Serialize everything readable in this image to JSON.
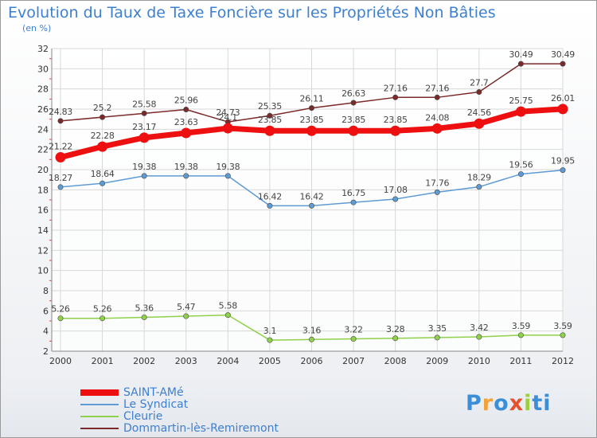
{
  "title": "Evolution du Taux de Taxe Foncière sur les Propriétés Non Bâties",
  "unit_label": "(en %)",
  "logo": {
    "text": "Proxiti",
    "colors": [
      "#3a8fd8",
      "#f2a23a",
      "#3a8fd8",
      "#e8502d",
      "#9ccf3b",
      "#3a8fd8",
      "#3a8fd8"
    ]
  },
  "chart_data": {
    "type": "line",
    "title": "Evolution du Taux de Taxe Foncière sur les Propriétés Non Bâties",
    "ylabel": "(en %)",
    "x": [
      "2000",
      "2001",
      "2002",
      "2003",
      "2004",
      "2005",
      "2006",
      "2007",
      "2008",
      "2009",
      "2010",
      "2011",
      "2012"
    ],
    "ylim": [
      2,
      32
    ],
    "yticks": [
      2,
      4,
      6,
      8,
      10,
      12,
      14,
      16,
      18,
      20,
      22,
      24,
      26,
      28,
      30,
      32
    ],
    "grid": true,
    "legend_position": "bottom-left",
    "series": [
      {
        "name": "SAINT-AMé",
        "color": "#ee1010",
        "values": [
          21.22,
          22.28,
          23.17,
          23.63,
          24.1,
          23.85,
          23.85,
          23.85,
          23.85,
          24.08,
          24.56,
          25.75,
          26.01
        ],
        "labels": [
          "21.22",
          "22.28",
          "23.17",
          "23.63",
          "24.1",
          "23.85",
          "23.85",
          "23.85",
          "23.85",
          "24.08",
          "24.56",
          "25.75",
          "26.01"
        ]
      },
      {
        "name": "Le Syndicat",
        "color": "#5e9bd3",
        "values": [
          18.27,
          18.64,
          19.38,
          19.38,
          19.38,
          16.42,
          16.42,
          16.75,
          17.08,
          17.76,
          18.29,
          19.56,
          19.95
        ],
        "labels": [
          "18.27",
          "18.64",
          "19.38",
          "19.38",
          "19.38",
          "16.42",
          "16.42",
          "16.75",
          "17.08",
          "17.76",
          "18.29",
          "19.56",
          "19.95"
        ]
      },
      {
        "name": "Cleurie",
        "color": "#8fd14a",
        "values": [
          5.26,
          5.26,
          5.36,
          5.47,
          5.58,
          3.1,
          3.16,
          3.22,
          3.28,
          3.35,
          3.42,
          3.59,
          3.59
        ],
        "labels": [
          "5.26",
          "5.26",
          "5.36",
          "5.47",
          "5.58",
          "3.1",
          "3.16",
          "3.22",
          "3.28",
          "3.35",
          "3.42",
          "3.59",
          "3.59"
        ]
      },
      {
        "name": "Dommartin-lès-Remiremont",
        "color": "#7a2a2a",
        "values": [
          24.83,
          25.2,
          25.58,
          25.96,
          24.73,
          25.35,
          26.11,
          26.63,
          27.16,
          27.16,
          27.7,
          30.49,
          30.49
        ],
        "labels": [
          "24.83",
          "25.2",
          "25.58",
          "25.96",
          "24.73",
          "25.35",
          "26.11",
          "26.63",
          "27.16",
          "27.16",
          "27.7",
          "30.49",
          "30.49"
        ]
      }
    ]
  }
}
